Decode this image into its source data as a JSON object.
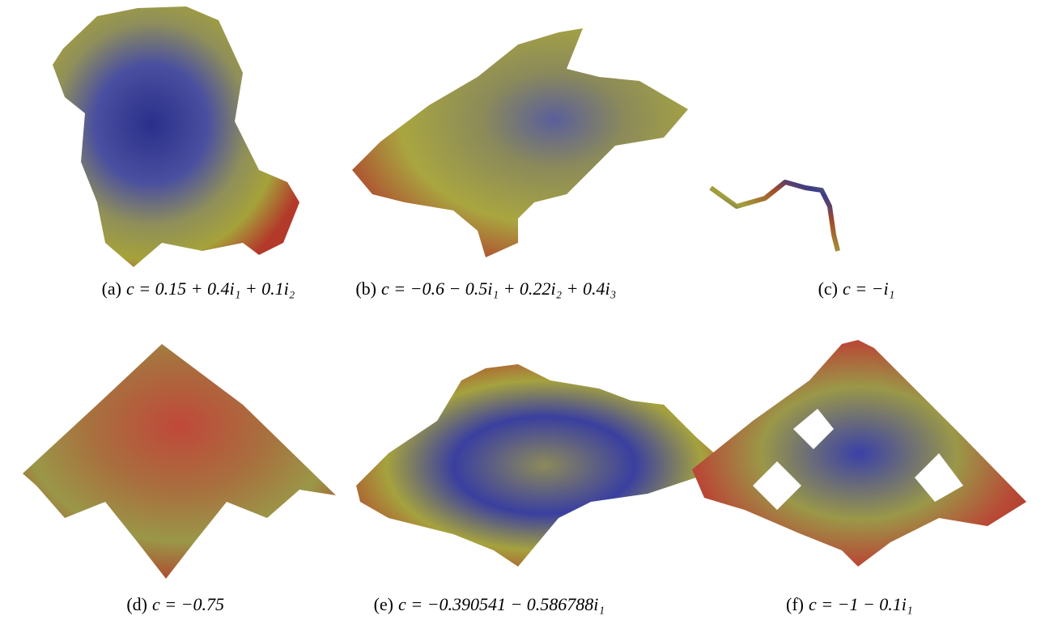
{
  "figure": {
    "panels": [
      {
        "label": "(a)",
        "formula": "c = 0.15 + 0.4i₁ + 0.1i₂"
      },
      {
        "label": "(b)",
        "formula": "c = −0.6 − 0.5i₁ + 0.22i₂ + 0.4i₃"
      },
      {
        "label": "(c)",
        "formula": "c = −i₁"
      },
      {
        "label": "(d)",
        "formula": "c = −0.75"
      },
      {
        "label": "(e)",
        "formula": "c = −0.390541 − 0.586788i₁"
      },
      {
        "label": "(f)",
        "formula": "c = −1 − 0.1i₁"
      }
    ]
  }
}
